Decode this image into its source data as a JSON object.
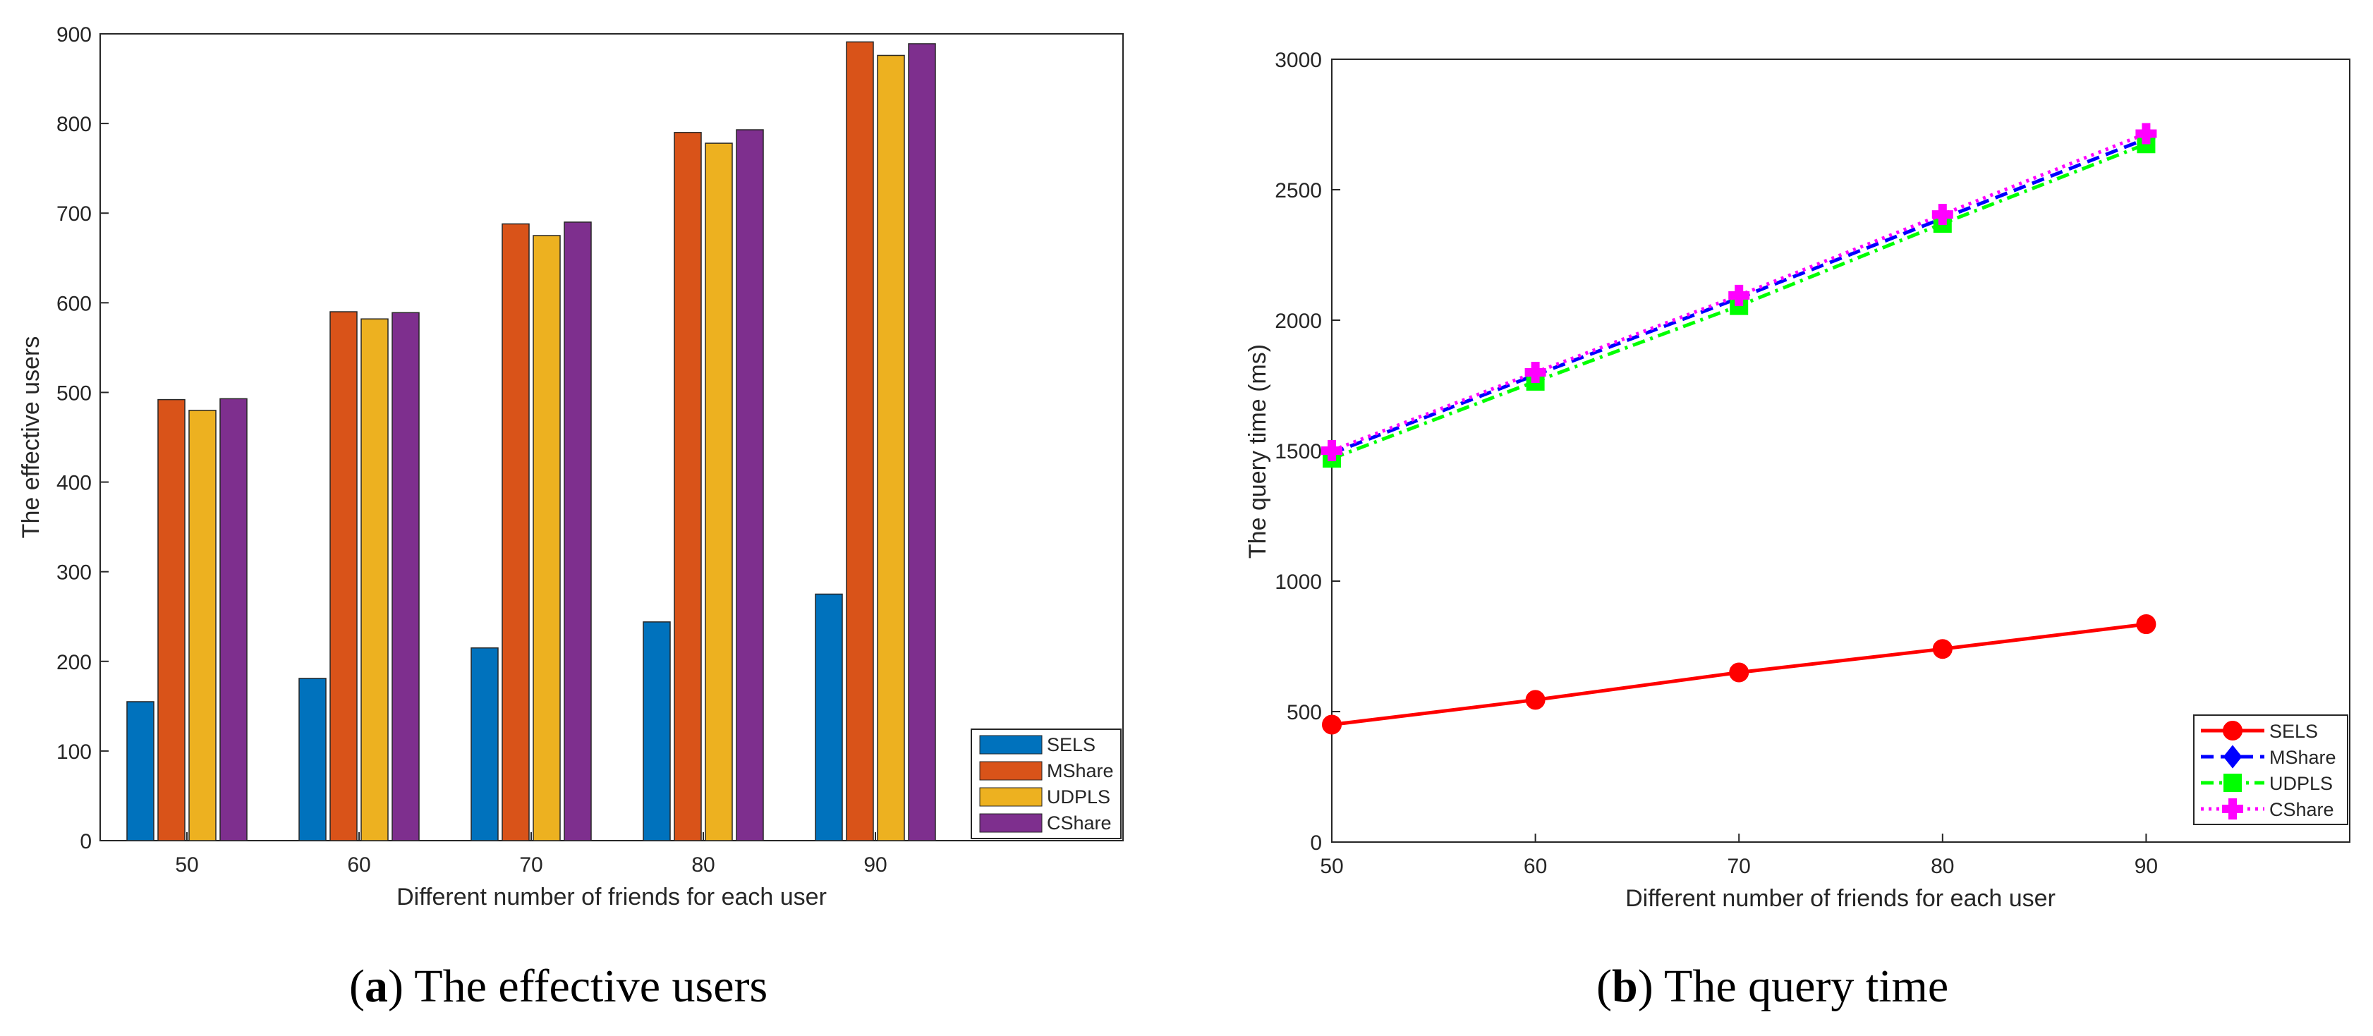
{
  "chart_data": [
    {
      "type": "bar",
      "title": "",
      "caption_label": "a",
      "caption_text": "The effective users",
      "xlabel": "Different number of friends for each user",
      "ylabel": "The effective users",
      "categories": [
        "50",
        "60",
        "70",
        "80",
        "90"
      ],
      "ylim": [
        0,
        900
      ],
      "yticks": [
        "0",
        "100",
        "200",
        "300",
        "400",
        "500",
        "600",
        "700",
        "800",
        "900"
      ],
      "legend_position": "bottom-right",
      "series": [
        {
          "name": "SELS",
          "color": "#0072bd",
          "values": [
            155,
            181,
            215,
            244,
            275
          ]
        },
        {
          "name": "MShare",
          "color": "#d95319",
          "values": [
            492,
            590,
            688,
            790,
            891
          ]
        },
        {
          "name": "UDPLS",
          "color": "#edb120",
          "values": [
            480,
            582,
            675,
            778,
            876
          ]
        },
        {
          "name": "CShare",
          "color": "#7e2f8e",
          "values": [
            493,
            589,
            690,
            793,
            889
          ]
        }
      ]
    },
    {
      "type": "line",
      "title": "",
      "caption_label": "b",
      "caption_text": "The query time",
      "xlabel": "Different number of friends for each user",
      "ylabel": "The query time (ms)",
      "x": [
        50,
        60,
        70,
        80,
        90
      ],
      "xlim": [
        50,
        100
      ],
      "xticks": [
        "50",
        "60",
        "70",
        "80",
        "90"
      ],
      "ylim": [
        0,
        3000
      ],
      "yticks": [
        "0",
        "500",
        "1000",
        "1500",
        "2000",
        "2500",
        "3000"
      ],
      "legend_position": "bottom-right",
      "series": [
        {
          "name": "SELS",
          "color": "#ff0000",
          "marker": "circle",
          "line": "solid",
          "values": [
            450,
            545,
            650,
            740,
            835
          ]
        },
        {
          "name": "MShare",
          "color": "#0000ff",
          "marker": "diamond",
          "line": "dashed",
          "values": [
            1490,
            1790,
            2085,
            2390,
            2695
          ]
        },
        {
          "name": "UDPLS",
          "color": "#00ff00",
          "marker": "square",
          "line": "dashdot",
          "values": [
            1470,
            1765,
            2055,
            2370,
            2675
          ]
        },
        {
          "name": "CShare",
          "color": "#ff00ff",
          "marker": "plus",
          "line": "dotted",
          "values": [
            1500,
            1800,
            2095,
            2405,
            2715
          ]
        }
      ]
    }
  ]
}
